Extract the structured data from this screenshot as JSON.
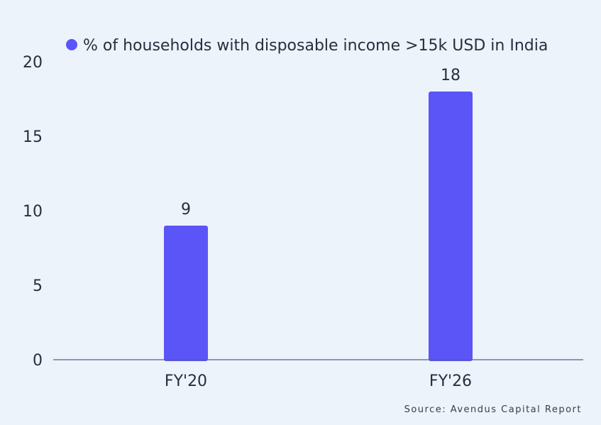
{
  "chart_data": {
    "type": "bar",
    "categories": [
      "FY'20",
      "FY'26"
    ],
    "series": [
      {
        "name": "% of households with disposable income >15k USD in India",
        "values": [
          9,
          18
        ]
      }
    ],
    "data_labels": [
      "9",
      "18"
    ],
    "yticks": [
      "0",
      "5",
      "10",
      "15",
      "20"
    ],
    "ylim": [
      0,
      20
    ],
    "grid": false,
    "legend_position": "top",
    "bar_color": "#5b55f7",
    "axis_color": "#5a5d8a"
  },
  "source": "Source: Avendus Capital Report"
}
